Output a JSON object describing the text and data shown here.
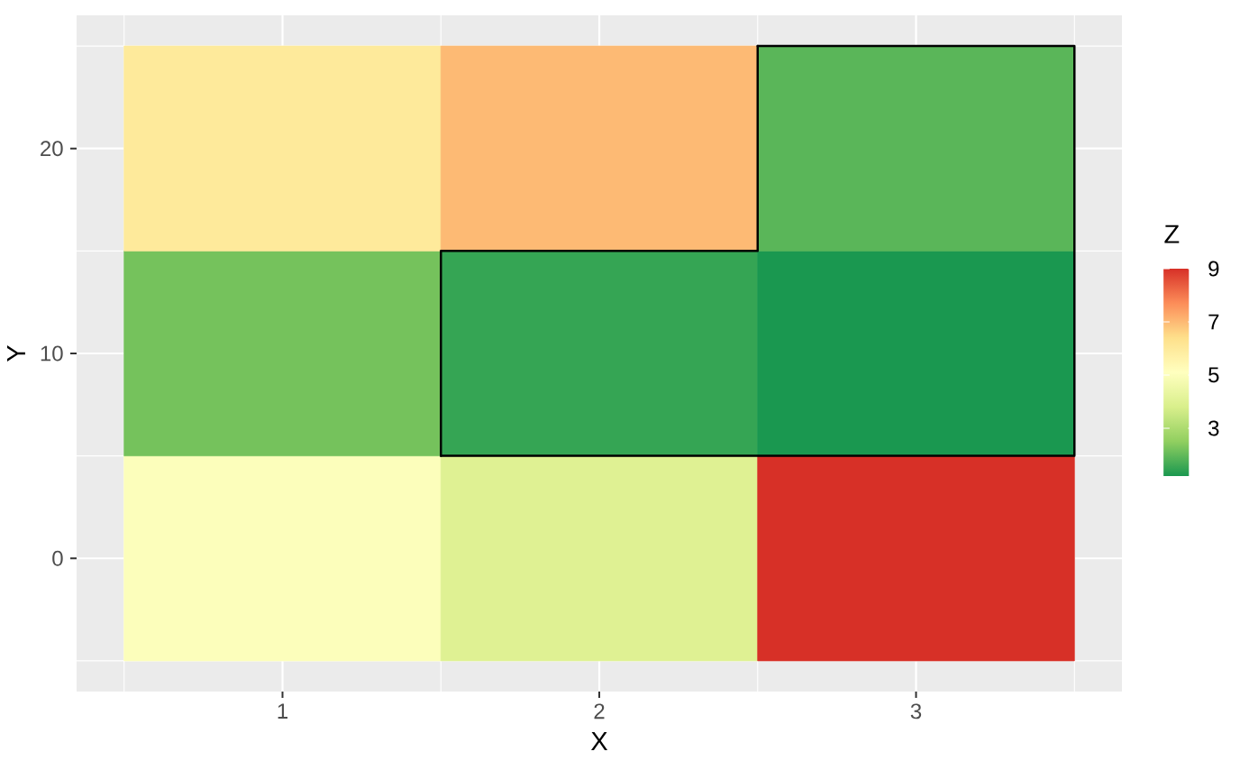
{
  "chart_data": {
    "type": "heatmap",
    "xlabel": "X",
    "ylabel": "Y",
    "clabel": "Z",
    "x": [
      1,
      2,
      3
    ],
    "y": [
      20,
      10,
      0
    ],
    "cells": [
      [
        6.0,
        7.0,
        1.9
      ],
      [
        2.2,
        1.5,
        1.2
      ],
      [
        5.0,
        4.0,
        9.0
      ]
    ],
    "clim": [
      1.2,
      9
    ],
    "cticks": [
      3,
      5,
      7,
      9
    ],
    "grid": true,
    "xlim": [
      0.35,
      3.65
    ],
    "ylim": [
      -6.5,
      26.5
    ],
    "xticks": [
      1,
      2,
      3
    ],
    "yticks": [
      0,
      10,
      20
    ],
    "series": [
      {
        "type": "line",
        "color": "#000000",
        "x": [
          1.5,
          3.5,
          3.5,
          2.5
        ],
        "values": [
          5,
          5,
          25,
          25
        ]
      },
      {
        "type": "line",
        "color": "#000000",
        "x": [
          2.5,
          2.5,
          1.5,
          1.5
        ],
        "values": [
          25,
          15,
          15,
          5
        ]
      }
    ]
  }
}
